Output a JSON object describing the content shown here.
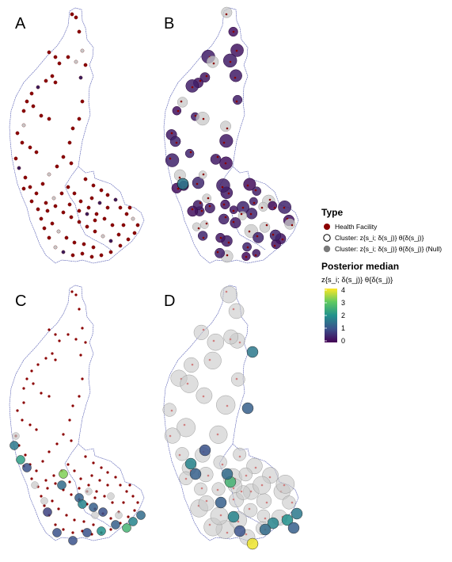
{
  "panels": [
    {
      "id": "A",
      "label": "A"
    },
    {
      "id": "B",
      "label": "B"
    },
    {
      "id": "C",
      "label": "C"
    },
    {
      "id": "D",
      "label": "D"
    }
  ],
  "legend": {
    "type_title": "Type",
    "items": [
      {
        "label": "Health Facility",
        "kind": "facility"
      },
      {
        "label": "Cluster: z{s_i; δ(s_j)} θ{δ(s_j)}",
        "kind": "cluster"
      },
      {
        "label": "Cluster: z{s_i; δ(s_j)} θ{δ(s_j)} (Null)",
        "kind": "null"
      }
    ],
    "scale_title": "Posterior median",
    "scale_subtitle": "z{s_i; δ(s_j)} θ{δ(s_j)}",
    "ticks": [
      "4",
      "3",
      "2",
      "1",
      "0"
    ],
    "tick_values": [
      4,
      3,
      2,
      1,
      0
    ]
  },
  "colors": {
    "facility": "#8b0000",
    "null_fill": "#c8c8c8",
    "border": "#5960b4",
    "viridis": [
      "#440154",
      "#3b528b",
      "#21918c",
      "#5ec962",
      "#fde725"
    ]
  }
}
